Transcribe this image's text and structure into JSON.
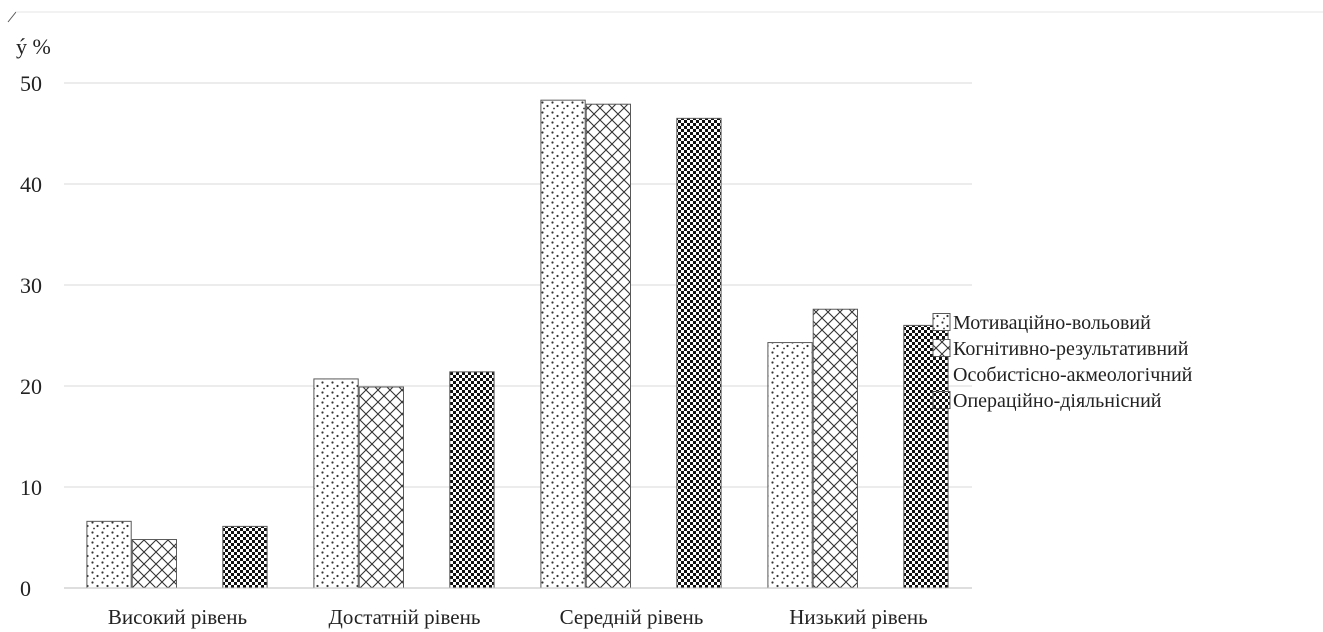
{
  "chart_data": {
    "type": "bar",
    "title": "",
    "xlabel": "",
    "ylabel": "ý %",
    "ylim": [
      0,
      50
    ],
    "yticks": [
      0,
      10,
      20,
      30,
      40,
      50
    ],
    "grid": true,
    "legend_position": "right",
    "categories": [
      "Високий рівень",
      "Достатній рівень",
      "Середній рівень",
      "Низький рівень"
    ],
    "series": [
      {
        "name": "Мотиваційно-вольовий",
        "values": [
          6.6,
          20.7,
          48.3,
          24.3
        ],
        "pattern": "dots"
      },
      {
        "name": "Когнітивно-результативний",
        "values": [
          4.8,
          19.9,
          47.9,
          27.6
        ],
        "pattern": "crosshatch"
      },
      {
        "name": "Особистісно-акмеологічний",
        "values": [
          0,
          0,
          0,
          0
        ],
        "pattern": "none"
      },
      {
        "name": "Операційно-діяльнісний",
        "values": [
          6.1,
          21.4,
          46.5,
          26.0
        ],
        "pattern": "checker"
      }
    ]
  }
}
